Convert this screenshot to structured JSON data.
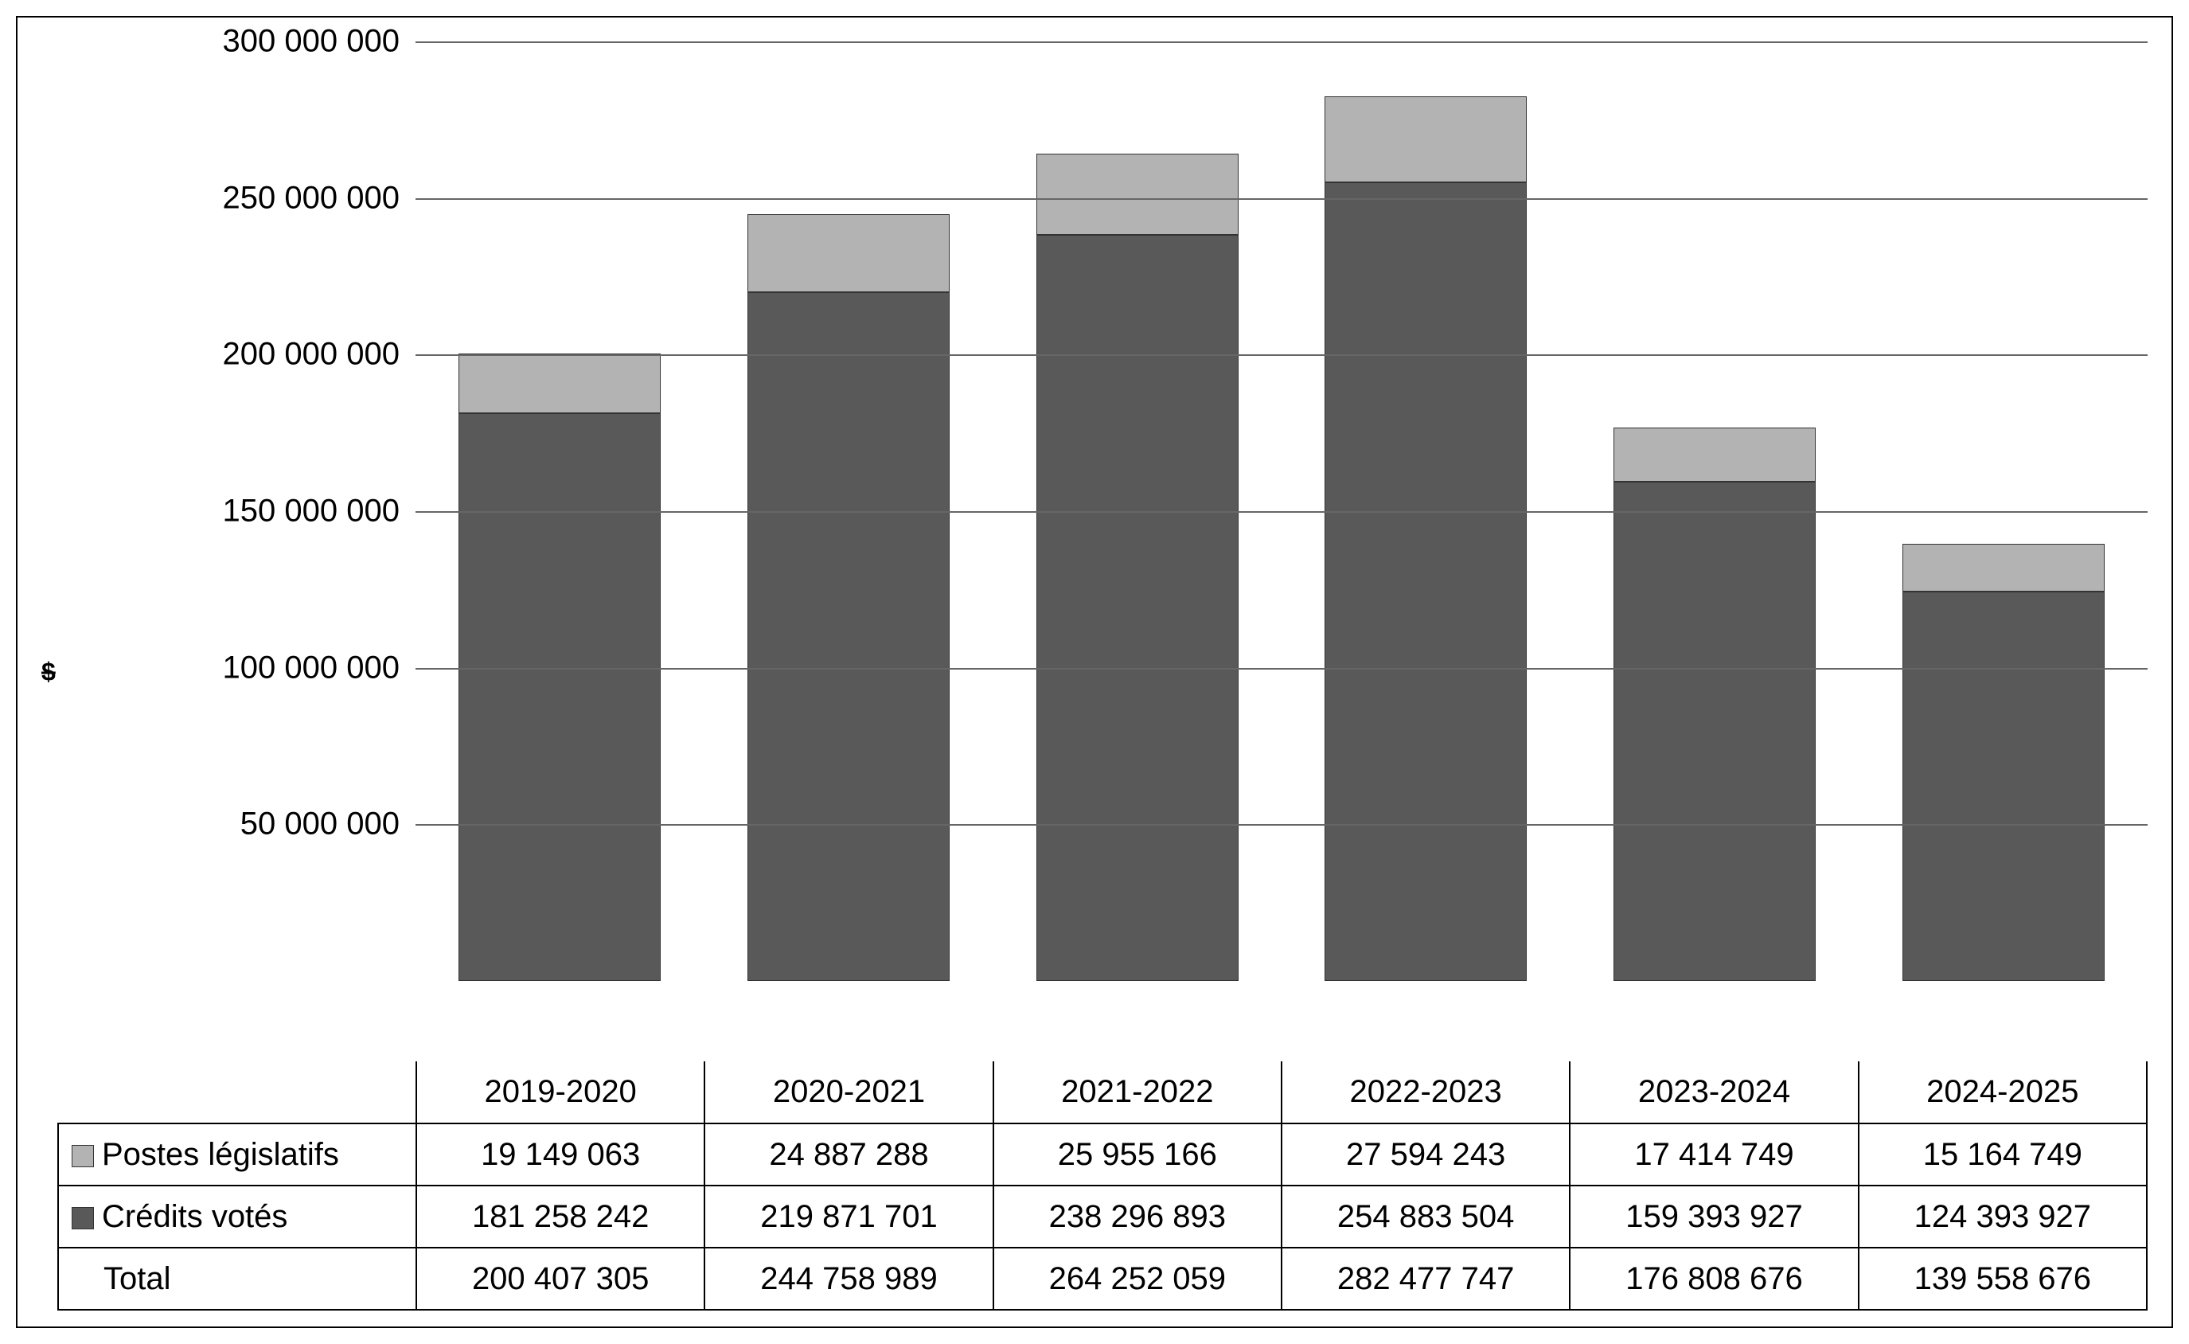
{
  "chart": {
    "type": "bar-stacked",
    "y_axis_symbol": "$",
    "y_axis_fontsize": 32,
    "background_color": "#ffffff",
    "border_color": "#000000",
    "grid_color": "#666666",
    "text_color": "#000000",
    "tick_fontsize": 40,
    "cell_fontsize": 40,
    "ylim": [
      0,
      300000000
    ],
    "ytick_step": 50000000,
    "yticks": [
      {
        "value": 0,
        "label": ""
      },
      {
        "value": 50000000,
        "label": "50 000 000"
      },
      {
        "value": 100000000,
        "label": "100 000 000"
      },
      {
        "value": 150000000,
        "label": "150 000 000"
      },
      {
        "value": 200000000,
        "label": "200 000 000"
      },
      {
        "value": 250000000,
        "label": "250 000 000"
      },
      {
        "value": 300000000,
        "label": "300 000 000"
      }
    ],
    "categories": [
      "2019-2020",
      "2020-2021",
      "2021-2022",
      "2022-2023",
      "2023-2024",
      "2024-2025"
    ],
    "series": [
      {
        "name": "Postes législatifs",
        "color": "#b3b3b3",
        "values": [
          19149063,
          24887288,
          25955166,
          27594243,
          17414749,
          15164749
        ],
        "labels": [
          "19 149 063",
          "24 887 288",
          "25 955 166",
          "27 594 243",
          "17 414 749",
          "15 164 749"
        ]
      },
      {
        "name": "Crédits votés",
        "color": "#595959",
        "values": [
          181258242,
          219871701,
          238296893,
          254883504,
          159393927,
          124393927
        ],
        "labels": [
          "181 258 242",
          "219 871 701",
          "238 296 893",
          "254 883 504",
          "159 393 927",
          "124 393 927"
        ]
      }
    ],
    "totals": {
      "name": "Total",
      "labels": [
        "200 407 305",
        "244 758 989",
        "264 252 059",
        "282 477 747",
        "176 808 676",
        "139 558 676"
      ]
    },
    "bar_width": 0.7
  }
}
